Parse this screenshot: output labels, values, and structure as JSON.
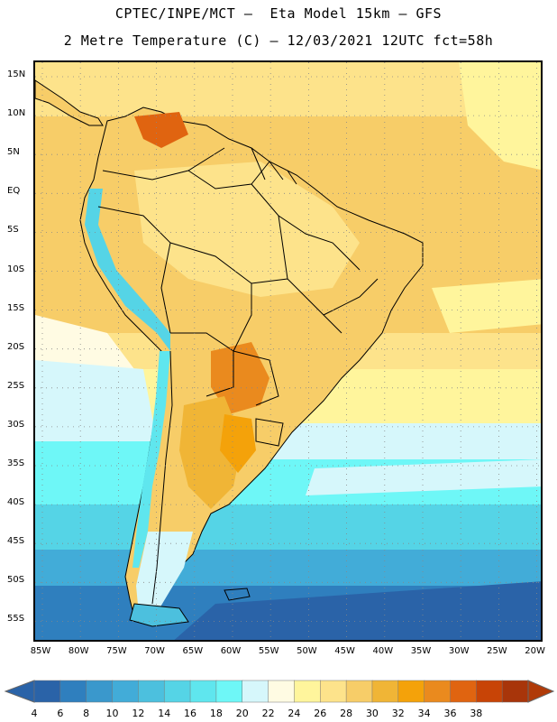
{
  "header": {
    "line1": "CPTEC/INPE/MCT –  Eta Model 15km – GFS",
    "line2": "2 Metre Temperature (C) – 12/03/2021 12UTC fct=58h"
  },
  "map": {
    "region": "South America",
    "lat_labels": [
      "15N",
      "10N",
      "5N",
      "EQ",
      "5S",
      "10S",
      "15S",
      "20S",
      "25S",
      "30S",
      "35S",
      "40S",
      "45S",
      "50S",
      "55S"
    ],
    "lon_labels": [
      "85W",
      "80W",
      "75W",
      "70W",
      "65W",
      "60W",
      "55W",
      "50W",
      "45W",
      "40W",
      "35W",
      "30W",
      "25W",
      "20W"
    ]
  },
  "legend": {
    "labels": [
      "4",
      "6",
      "8",
      "10",
      "12",
      "14",
      "16",
      "18",
      "20",
      "22",
      "24",
      "26",
      "28",
      "30",
      "32",
      "34",
      "36",
      "38"
    ],
    "colors": [
      "#2a63a8",
      "#2f7fbe",
      "#3a98cc",
      "#42acd8",
      "#4cc0de",
      "#55d4e6",
      "#5fe6ee",
      "#6ef7f7",
      "#d6f7fb",
      "#fffbe3",
      "#fff59c",
      "#fde38b",
      "#f7cd68",
      "#f0b536",
      "#f4a20a",
      "#ea8a1e",
      "#e06410",
      "#c84406",
      "#a8350a"
    ],
    "low_arrow_color": "#2a63a8",
    "high_arrow_color": "#b03a08"
  }
}
